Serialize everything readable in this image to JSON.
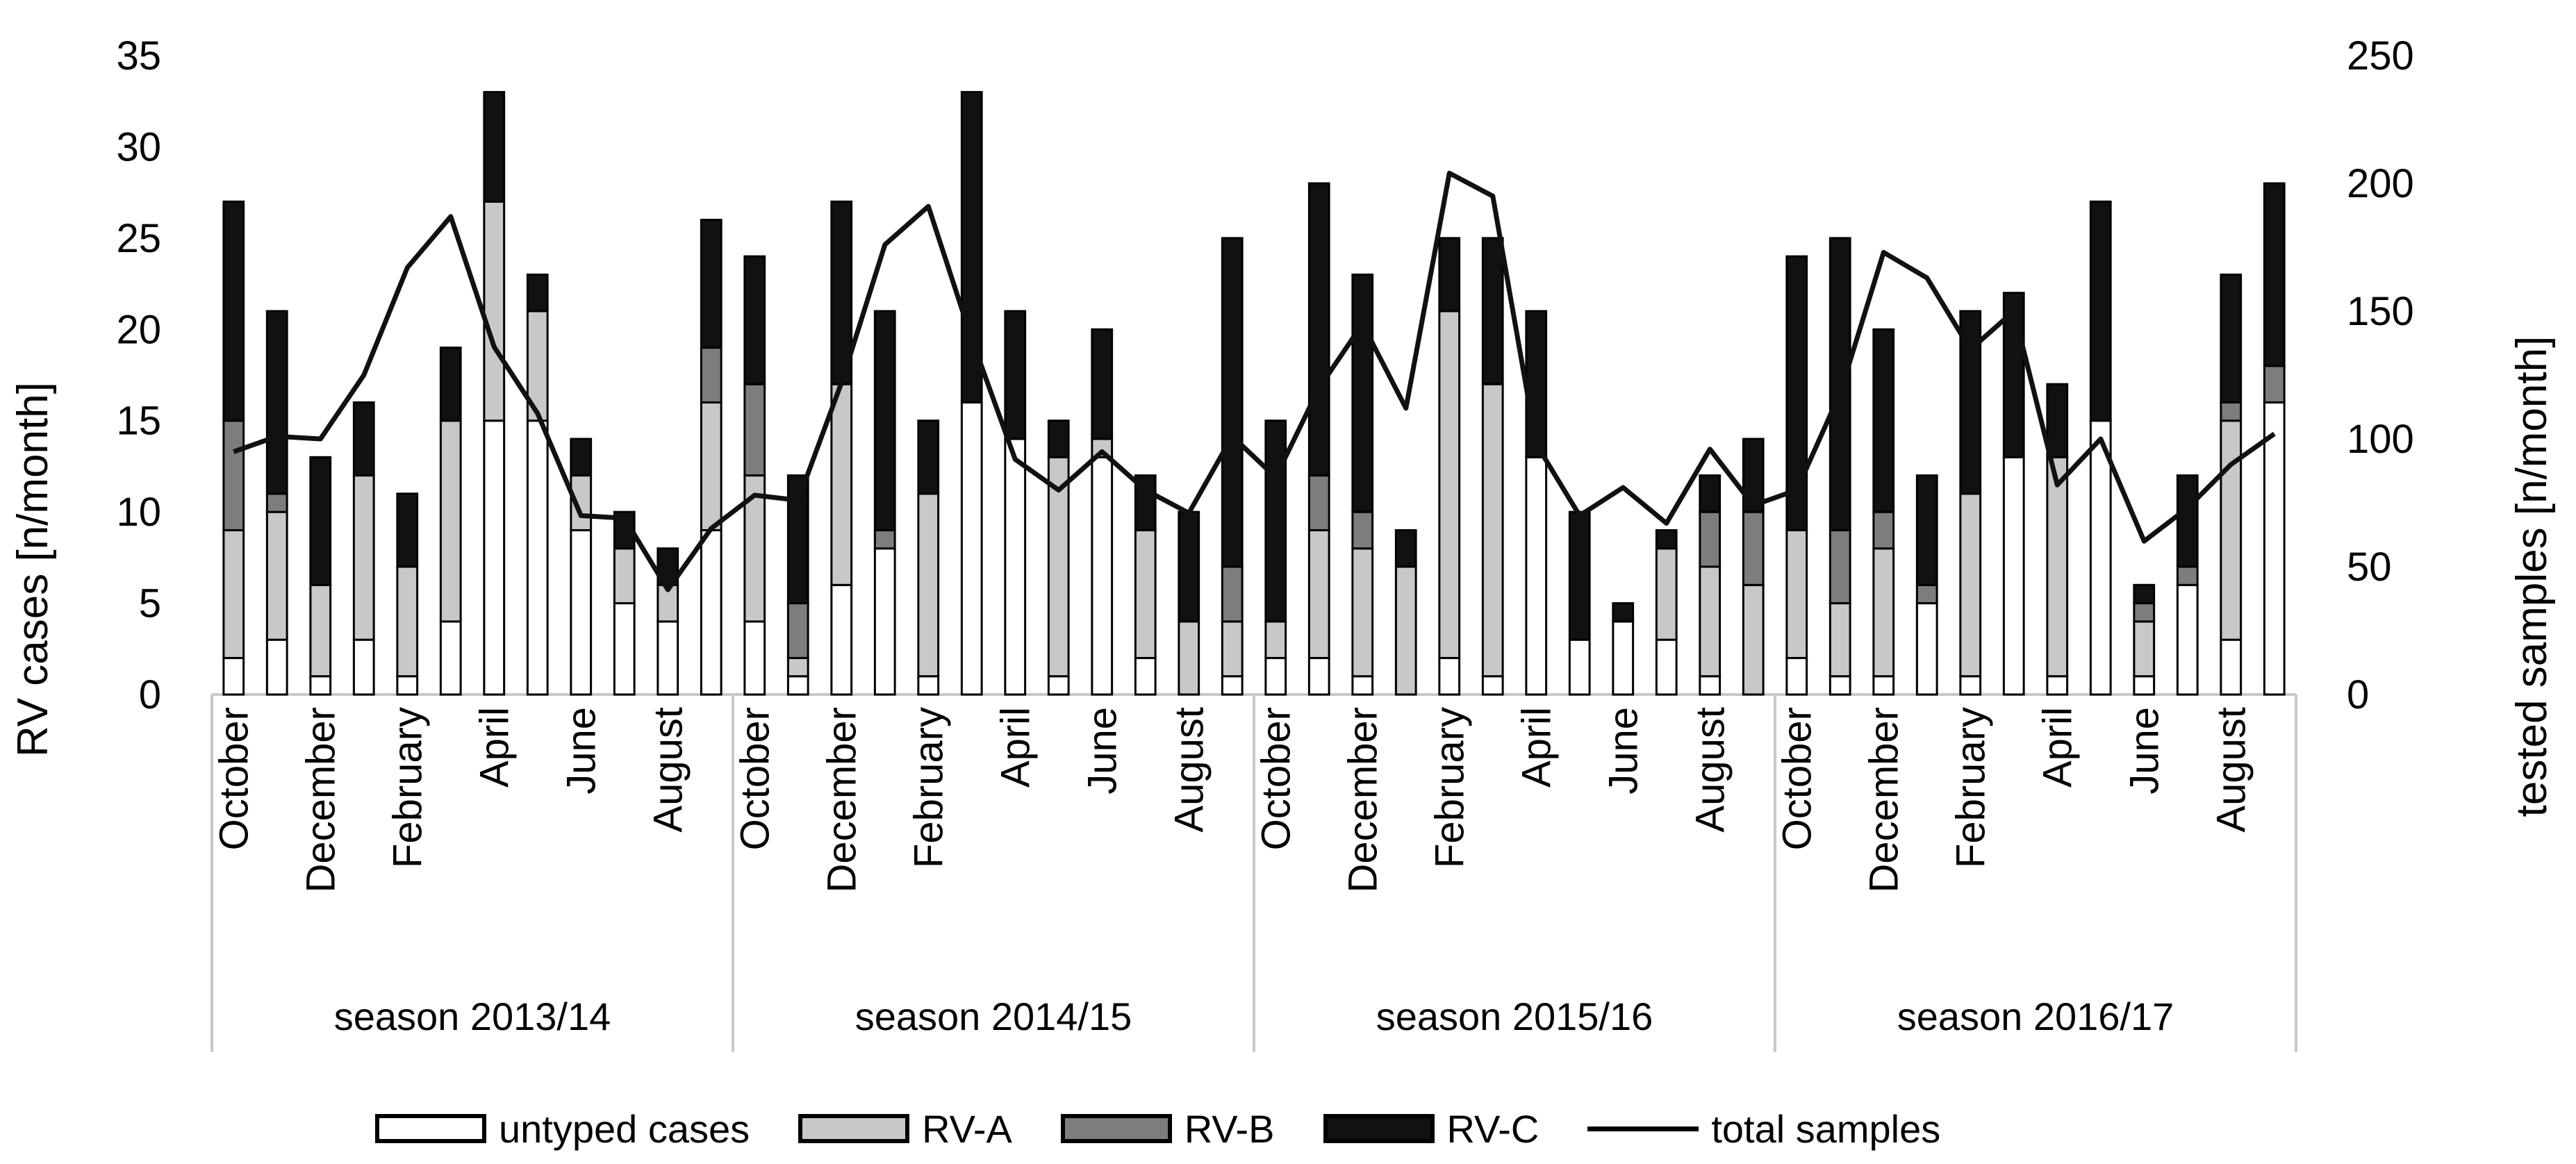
{
  "chart_data": {
    "type": "bar",
    "stacked": true,
    "combo_line_series": "total samples",
    "categories": [
      "October",
      "November",
      "December",
      "January",
      "February",
      "March",
      "April",
      "May",
      "June",
      "July",
      "August",
      "September",
      "October",
      "November",
      "December",
      "January",
      "February",
      "March",
      "April",
      "May",
      "June",
      "July",
      "August",
      "September",
      "October",
      "November",
      "December",
      "January",
      "February",
      "March",
      "April",
      "May",
      "June",
      "July",
      "August",
      "September",
      "October",
      "November",
      "December",
      "January",
      "February",
      "March",
      "April",
      "May",
      "June",
      "July",
      "August",
      "September"
    ],
    "visible_tick_labels": [
      "October",
      "",
      "December",
      "",
      "February",
      "",
      "April",
      "",
      "June",
      "",
      "August",
      ""
    ],
    "groups": [
      {
        "label": "season 2013/14",
        "start": 0,
        "count": 12
      },
      {
        "label": "season 2014/15",
        "start": 12,
        "count": 12
      },
      {
        "label": "season 2015/16",
        "start": 24,
        "count": 12
      },
      {
        "label": "season 2016/17",
        "start": 36,
        "count": 12
      }
    ],
    "series": [
      {
        "name": "untyped cases",
        "axis": "left",
        "color": "#ffffff",
        "values": [
          2,
          3,
          1,
          3,
          1,
          4,
          15,
          15,
          9,
          5,
          4,
          9,
          4,
          1,
          6,
          8,
          1,
          16,
          14,
          1,
          13,
          2,
          0,
          1,
          2,
          2,
          1,
          0,
          2,
          1,
          13,
          3,
          4,
          3,
          1,
          0,
          2,
          1,
          1,
          5,
          1,
          13,
          1,
          15,
          1,
          6,
          3,
          16
        ]
      },
      {
        "name": "RV-A",
        "axis": "left",
        "color": "#c8c8c8",
        "values": [
          7,
          7,
          5,
          9,
          6,
          11,
          12,
          6,
          3,
          3,
          2,
          7,
          8,
          1,
          11,
          0,
          10,
          0,
          0,
          12,
          1,
          7,
          4,
          3,
          2,
          7,
          7,
          7,
          19,
          16,
          0,
          0,
          0,
          5,
          6,
          6,
          7,
          4,
          7,
          0,
          10,
          0,
          12,
          0,
          3,
          0,
          12,
          0
        ]
      },
      {
        "name": "RV-B",
        "axis": "left",
        "color": "#7d7d7d",
        "values": [
          6,
          1,
          0,
          0,
          0,
          0,
          0,
          0,
          0,
          0,
          0,
          3,
          5,
          3,
          0,
          1,
          0,
          0,
          0,
          0,
          0,
          0,
          0,
          3,
          0,
          3,
          2,
          0,
          0,
          0,
          0,
          0,
          0,
          0,
          3,
          4,
          0,
          4,
          2,
          1,
          0,
          0,
          0,
          0,
          1,
          1,
          1,
          2
        ]
      },
      {
        "name": "RV-C",
        "axis": "left",
        "color": "#111111",
        "values": [
          12,
          10,
          7,
          4,
          4,
          4,
          6,
          2,
          2,
          2,
          2,
          7,
          7,
          7,
          10,
          12,
          4,
          17,
          7,
          2,
          6,
          3,
          6,
          18,
          11,
          16,
          13,
          2,
          4,
          8,
          8,
          7,
          1,
          1,
          2,
          4,
          15,
          16,
          10,
          6,
          10,
          9,
          4,
          12,
          1,
          5,
          7,
          10
        ]
      },
      {
        "name": "total samples",
        "axis": "right",
        "type": "line",
        "color": "#111111",
        "values": [
          95,
          101,
          100,
          125,
          167,
          187,
          136,
          110,
          70,
          69,
          41,
          65,
          78,
          76,
          122,
          176,
          191,
          139,
          92,
          80,
          95,
          80,
          71,
          101,
          85,
          120,
          145,
          112,
          204,
          195,
          98,
          70,
          81,
          67,
          96,
          74,
          80,
          118,
          173,
          163,
          135,
          150,
          82,
          100,
          60,
          73,
          90,
          102
        ]
      }
    ],
    "y_left": {
      "label": "RV cases [n/month]",
      "min": 0,
      "max": 35,
      "step": 5
    },
    "y_right": {
      "label": "tested samples [n/month]",
      "min": 0,
      "max": 250,
      "step": 50
    },
    "legend_position": "bottom"
  }
}
